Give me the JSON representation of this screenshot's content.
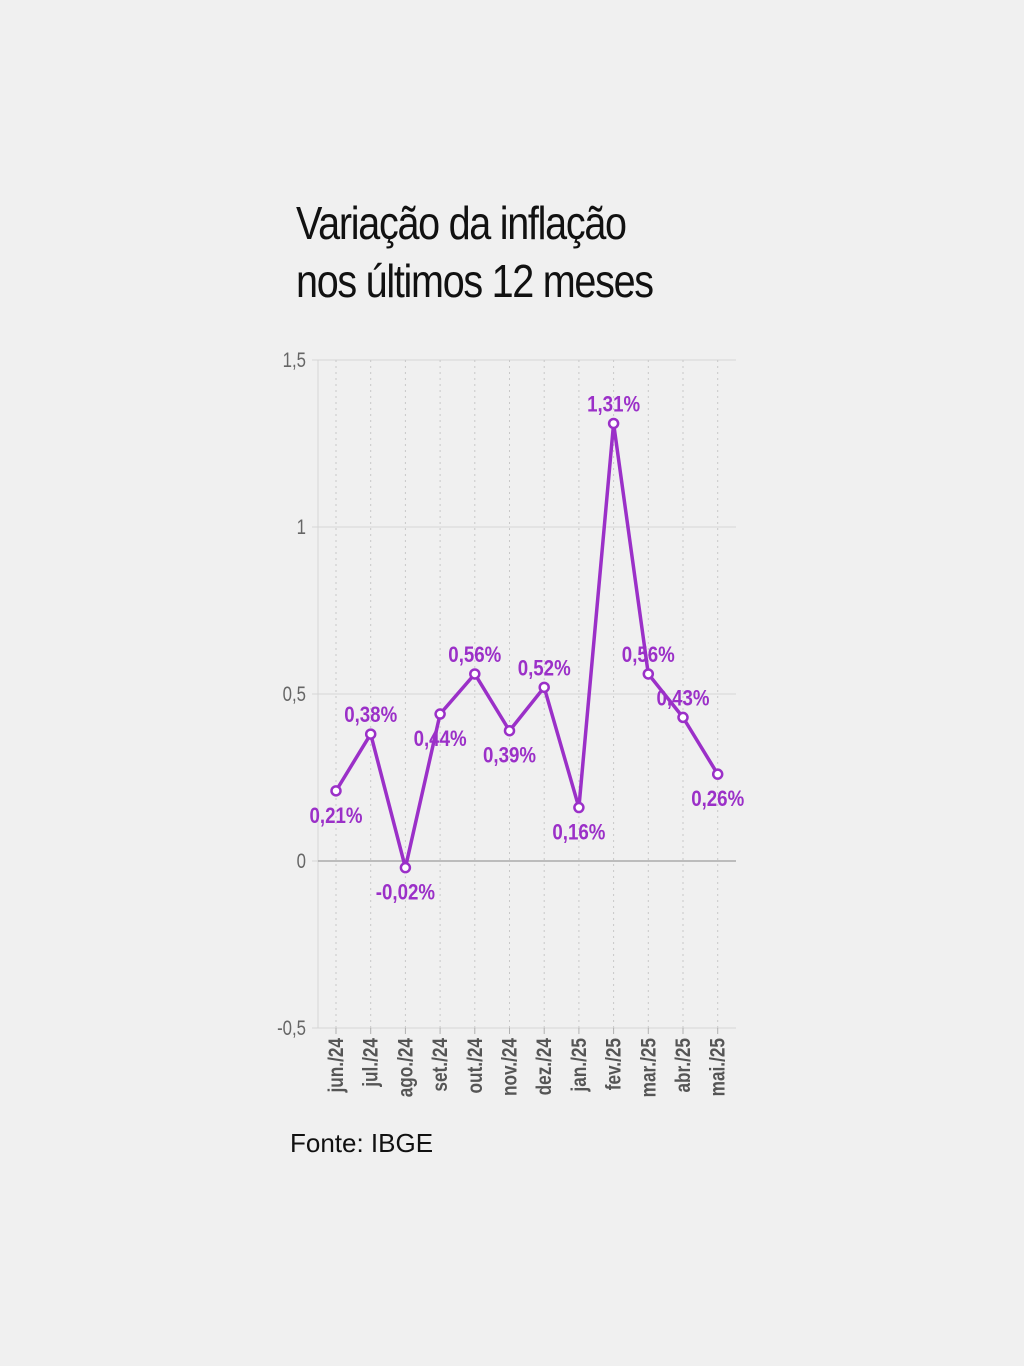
{
  "title": {
    "line1": "Variação da inflação",
    "line2": "nos últimos 12 meses"
  },
  "source": "Fonte: IBGE",
  "colors": {
    "series": "#9b30c8",
    "grid": "#d6d6d6",
    "zero_line": "#aaaaaa",
    "axis_text": "#666666"
  },
  "chart_data": {
    "type": "line",
    "title": "Variação da inflação nos últimos 12 meses",
    "xlabel": "",
    "ylabel": "",
    "ylim": [
      -0.5,
      1.5
    ],
    "yticks": [
      -0.5,
      0,
      0.5,
      1,
      1.5
    ],
    "ytick_labels": [
      "-0,5",
      "0",
      "0,5",
      "1",
      "1,5"
    ],
    "grid": true,
    "categories": [
      "jun./24",
      "jul./24",
      "ago./24",
      "set./24",
      "out./24",
      "nov./24",
      "dez./24",
      "jan./25",
      "fev./25",
      "mar./25",
      "abr./25",
      "mai./25"
    ],
    "values": [
      0.21,
      0.38,
      -0.02,
      0.44,
      0.56,
      0.39,
      0.52,
      0.16,
      1.31,
      0.56,
      0.43,
      0.26
    ],
    "data_labels": [
      "0,21%",
      "0,38%",
      "-0,02%",
      "0,44%",
      "0,56%",
      "0,39%",
      "0,52%",
      "0,16%",
      "1,31%",
      "0,56%",
      "0,43%",
      "0,26%"
    ],
    "label_positions": [
      "below",
      "above",
      "below",
      "below",
      "above",
      "below",
      "above",
      "below",
      "above",
      "above",
      "above",
      "below"
    ]
  }
}
